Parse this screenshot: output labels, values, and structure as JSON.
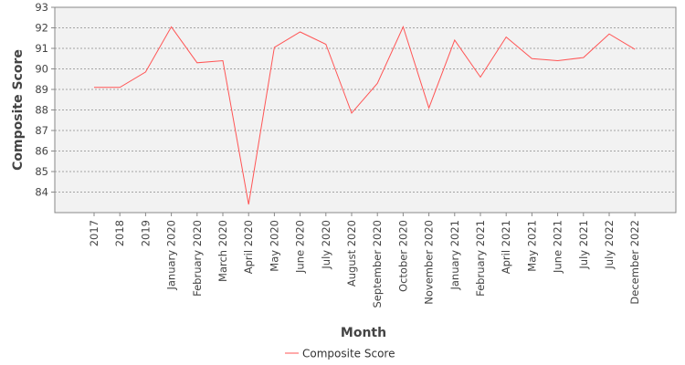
{
  "chart_data": {
    "type": "line",
    "title": "",
    "xlabel": "Month",
    "ylabel": "Composite Score",
    "categories": [
      "2017",
      "2018",
      "2019",
      "January 2020",
      "February 2020",
      "March 2020",
      "April 2020",
      "May 2020",
      "June 2020",
      "July 2020",
      "August 2020",
      "September 2020",
      "October 2020",
      "November 2020",
      "January 2021",
      "February 2021",
      "April 2021",
      "May 2021",
      "June 2021",
      "July 2021",
      "July 2022",
      "December 2022"
    ],
    "series": [
      {
        "name": "Composite Score",
        "color": "#ff5555",
        "values": [
          89.1,
          89.1,
          89.85,
          92.05,
          90.3,
          90.4,
          83.4,
          91.05,
          91.8,
          91.2,
          87.85,
          89.3,
          92.05,
          88.1,
          91.4,
          89.6,
          91.55,
          90.5,
          90.4,
          90.55,
          91.7,
          90.95
        ]
      }
    ],
    "ylim": [
      83,
      93
    ],
    "yticks": [
      84,
      85,
      86,
      87,
      88,
      89,
      90,
      91,
      92,
      93
    ],
    "grid": true,
    "legend_position": "bottom"
  }
}
